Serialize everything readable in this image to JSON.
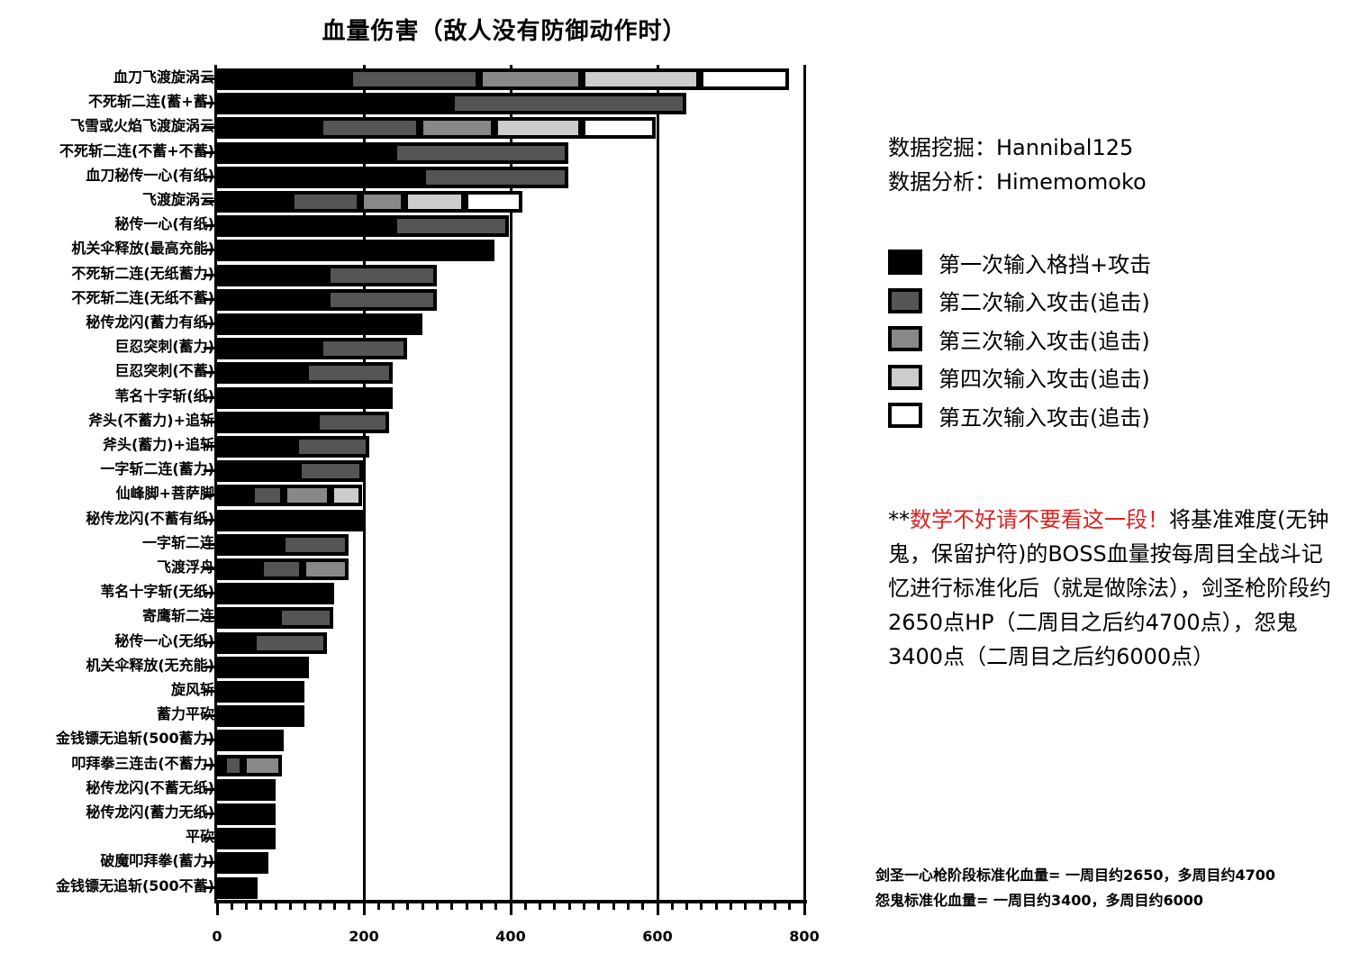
{
  "title": "血量伤害（敌人没有防御动作时）",
  "credits": {
    "mining": "数据挖掘：Hannibal125",
    "analysis": "数据分析：Himemomoko"
  },
  "legend": [
    {
      "label": "第一次输入格挡+攻击",
      "color": "#000000"
    },
    {
      "label": "第二次输入攻击(追击)",
      "color": "#555555"
    },
    {
      "label": "第三次输入攻击(追击)",
      "color": "#888888"
    },
    {
      "label": "第四次输入攻击(追击)",
      "color": "#cccccc"
    },
    {
      "label": "第五次输入攻击(追击)",
      "color": "#ffffff"
    }
  ],
  "note": {
    "prefix": "**",
    "warning": "数学不好请不要看这一段！",
    "body": "将基准难度(无钟鬼，保留护符)的BOSS血量按每周目全战斗记忆进行标准化后（就是做除法），剑圣枪阶段约2650点HP（二周目之后约4700点），怨鬼3400点（二周目之后约6000点）"
  },
  "footer": {
    "line1": "剑圣一心枪阶段标准化血量= 一周目约2650，多周目约4700",
    "line2": "怨鬼标准化血量= 一周目约3400，多周目约6000"
  },
  "chart_data": {
    "type": "bar",
    "orientation": "horizontal",
    "stacked": true,
    "title": "血量伤害（敌人没有防御动作时）",
    "xlabel": "",
    "ylabel": "",
    "xlim": [
      0,
      800
    ],
    "xticks": [
      0,
      200,
      400,
      600,
      800
    ],
    "grid": "vertical major lines at 200, 400, 600, 800",
    "legend_position": "right",
    "series_names": [
      "第一次输入格挡+攻击",
      "第二次输入攻击(追击)",
      "第三次输入攻击(追击)",
      "第四次输入攻击(追击)",
      "第五次输入攻击(追击)"
    ],
    "note": "segments given as cumulative end values; segment value = end - previous end",
    "categories": [
      {
        "label": "血刀飞渡旋涡云",
        "cum": [
          180,
          357,
          497,
          658,
          779
        ]
      },
      {
        "label": "不死斩二连(蓄+蓄)",
        "cum": [
          319,
          639
        ]
      },
      {
        "label": "飞雪或火焰飞渡旋涡云",
        "cum": [
          140,
          276,
          378,
          497,
          598
        ]
      },
      {
        "label": "不死斩二连(不蓄+不蓄)",
        "cum": [
          240,
          478
        ]
      },
      {
        "label": "血刀秘传一心(有纸)",
        "cum": [
          280,
          478
        ]
      },
      {
        "label": "飞渡旋涡云",
        "cum": [
          100,
          195,
          255,
          337,
          416
        ]
      },
      {
        "label": "秘传一心(有纸)",
        "cum": [
          240,
          397
        ]
      },
      {
        "label": "机关伞释放(最高充能)",
        "cum": [
          378
        ]
      },
      {
        "label": "不死斩二连(无纸蓄力)",
        "cum": [
          150,
          299
        ]
      },
      {
        "label": "不死斩二连(无纸不蓄)",
        "cum": [
          150,
          299
        ]
      },
      {
        "label": "秘传龙闪(蓄力有纸)",
        "cum": [
          280
        ]
      },
      {
        "label": "巨忍突刺(蓄力)",
        "cum": [
          140,
          259
        ]
      },
      {
        "label": "巨忍突刺(不蓄)",
        "cum": [
          120,
          239
        ]
      },
      {
        "label": "苇名十字斩(纸)",
        "cum": [
          239
        ]
      },
      {
        "label": "斧头(不蓄力)+追斩",
        "cum": [
          135,
          234
        ]
      },
      {
        "label": "斧头(蓄力)+追斩",
        "cum": [
          107,
          207
        ]
      },
      {
        "label": "一字斩二连(蓄力)",
        "cum": [
          110,
          199
        ]
      },
      {
        "label": "仙峰脚+菩萨脚",
        "cum": [
          47,
          91,
          155,
          197
        ]
      },
      {
        "label": "秘传龙闪(不蓄有纸)",
        "cum": [
          201
        ]
      },
      {
        "label": "一字斩二连",
        "cum": [
          88,
          179
        ]
      },
      {
        "label": "飞渡浮舟",
        "cum": [
          59,
          117,
          179
        ]
      },
      {
        "label": "苇名十字斩(无纸)",
        "cum": [
          160
        ]
      },
      {
        "label": "寄鹰斩二连",
        "cum": [
          83,
          158
        ]
      },
      {
        "label": "秘传一心(无纸)",
        "cum": [
          49,
          150
        ]
      },
      {
        "label": "机关伞释放(无充能)",
        "cum": [
          125
        ]
      },
      {
        "label": "旋风斩",
        "cum": [
          119
        ]
      },
      {
        "label": "蓄力平砍",
        "cum": [
          119
        ]
      },
      {
        "label": "金钱镖无追斩(500蓄力)",
        "cum": [
          91
        ]
      },
      {
        "label": "叩拜拳三连击(不蓄力)",
        "cum": [
          9,
          36,
          88
        ]
      },
      {
        "label": "秘传龙闪(不蓄无纸)",
        "cum": [
          80
        ]
      },
      {
        "label": "秘传龙闪(蓄力无纸)",
        "cum": [
          80
        ]
      },
      {
        "label": "平砍",
        "cum": [
          80
        ]
      },
      {
        "label": "破魔叩拜拳(蓄力)",
        "cum": [
          70
        ]
      },
      {
        "label": "金钱镖无追斩(500不蓄)",
        "cum": [
          55
        ]
      }
    ]
  }
}
